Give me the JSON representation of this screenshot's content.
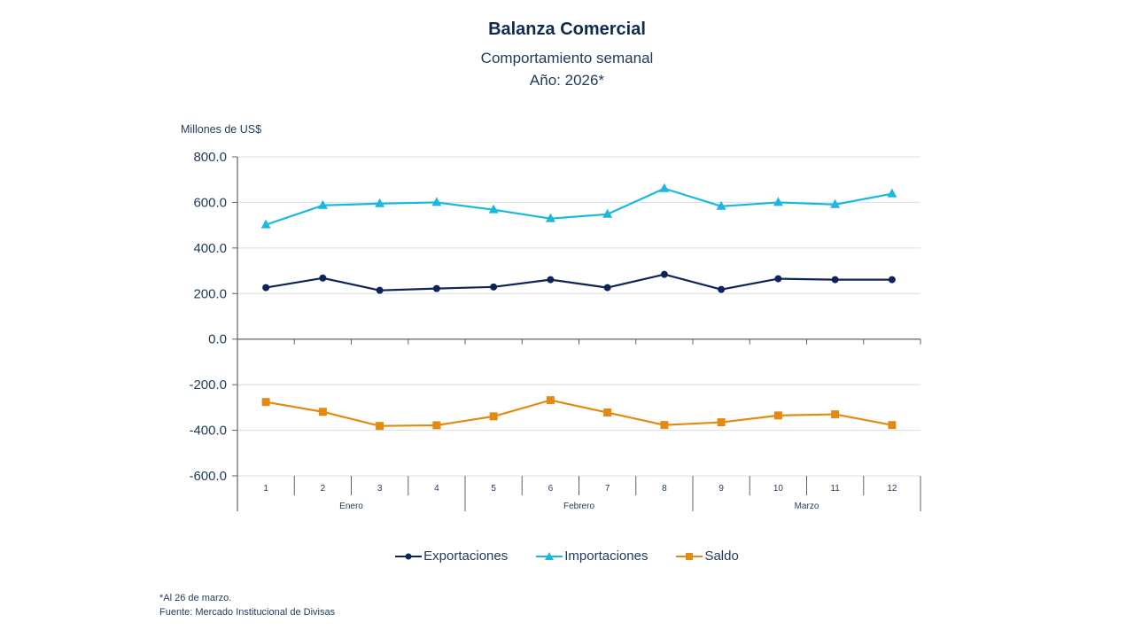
{
  "chart_data": {
    "type": "line",
    "title": "Balanza Comercial",
    "subtitle": "Comportamiento semanal",
    "subtitle2": "Año: 2026*",
    "ylabel": "Millones de US$",
    "xlabel": "",
    "ylim": [
      -600,
      800
    ],
    "yticks": [
      800,
      600,
      400,
      200,
      0,
      -200,
      -400,
      -600
    ],
    "ytick_labels": [
      "800.0",
      "600.0",
      "400.0",
      "200.0",
      "0.0",
      "-200.0",
      "-400.0",
      "-600.0"
    ],
    "grid": true,
    "categories": [
      "1",
      "2",
      "3",
      "4",
      "5",
      "6",
      "7",
      "8",
      "9",
      "10",
      "11",
      "12"
    ],
    "groups": [
      {
        "label": "Enero",
        "count": 4
      },
      {
        "label": "Febrero",
        "count": 4
      },
      {
        "label": "Marzo",
        "count": 4
      }
    ],
    "series": [
      {
        "name": "Exportaciones",
        "color": "#0d2458",
        "marker": "circle",
        "values": [
          226,
          268,
          214,
          222,
          229,
          261,
          226,
          284,
          218,
          265,
          261,
          261
        ]
      },
      {
        "name": "Importaciones",
        "color": "#1ab8e0",
        "marker": "triangle",
        "values": [
          502,
          587,
          595,
          600,
          568,
          529,
          548,
          661,
          583,
          600,
          591,
          638
        ]
      },
      {
        "name": "Saldo",
        "color": "#e48a10",
        "marker": "square",
        "values": [
          -276,
          -319,
          -381,
          -378,
          -339,
          -268,
          -322,
          -377,
          -365,
          -335,
          -330,
          -377
        ]
      }
    ],
    "legend_position": "bottom"
  },
  "footnote": "*Al 26 de marzo.",
  "source": "Fuente: Mercado Institucional de Divisas"
}
